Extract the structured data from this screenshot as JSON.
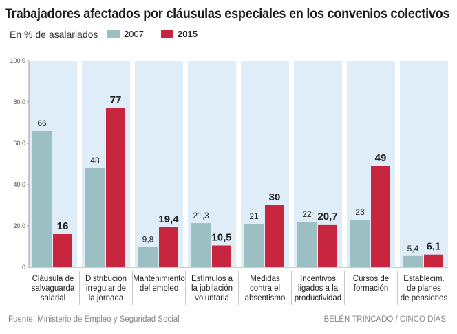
{
  "title": "Trabajadores afectados por cláusulas especiales en los convenios colectivos",
  "subtitle": "En % de asalariados",
  "legend": [
    {
      "name": "2007",
      "color": "#9bbfc2"
    },
    {
      "name": "2015",
      "color": "#c8253f"
    }
  ],
  "footer": {
    "source": "Fuente: Ministerio de Empleo y Seguridad Social",
    "credit": "BELÉN TRINCADO / CINCO DÍAS"
  },
  "chart_data": {
    "type": "bar",
    "ylim": [
      0,
      100
    ],
    "yticks": [
      "100,0",
      "80,0",
      "60,0",
      "40,0",
      "20,0",
      "0"
    ],
    "ytick_values": [
      100,
      80,
      60,
      40,
      20,
      0
    ],
    "categories": [
      [
        "Cláusula de",
        "salvaguarda",
        "salarial"
      ],
      [
        "Distribución",
        "irregular de",
        "la jornada"
      ],
      [
        "Mantenimiento",
        "del empleo"
      ],
      [
        "Estímulos a",
        "la jubilación",
        "voluntaria"
      ],
      [
        "Medidas",
        "contra el",
        "absentismo"
      ],
      [
        "Incentivos",
        "ligados a la",
        "productividad"
      ],
      [
        "Cursos de",
        "formación"
      ],
      [
        "Establecim.",
        "de planes",
        "de pensiones"
      ]
    ],
    "series": [
      {
        "name": "2007",
        "color": "#9bbfc2",
        "values": [
          66,
          48,
          9.8,
          21.3,
          21,
          22,
          23,
          5.4
        ],
        "labels": [
          "66",
          "48",
          "9,8",
          "21,3",
          "21",
          "22",
          "23",
          "5,4"
        ]
      },
      {
        "name": "2015",
        "color": "#c8253f",
        "values": [
          16,
          77,
          19.4,
          10.5,
          30,
          20.7,
          49,
          6.1
        ],
        "labels": [
          "16",
          "77",
          "19,4",
          "10,5",
          "30",
          "20,7",
          "49",
          "6,1"
        ]
      }
    ],
    "background_color": "#deedf7",
    "grid": false
  }
}
